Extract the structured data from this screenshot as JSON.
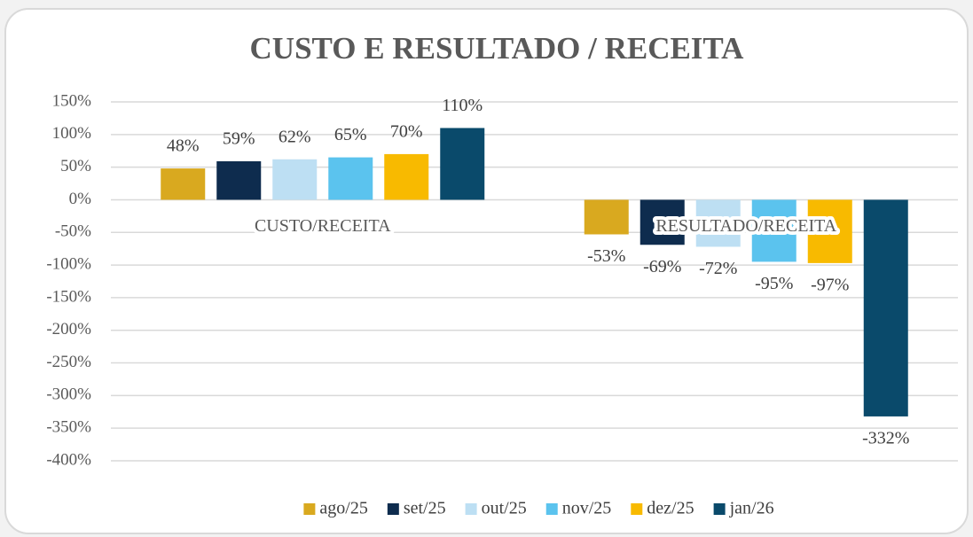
{
  "chart_data": {
    "type": "bar",
    "title": "CUSTO E RESULTADO / RECEITA",
    "categories": [
      "CUSTO/RECEITA",
      "RESULTADO/RECEITA"
    ],
    "series": [
      {
        "name": "ago/25",
        "color": "#D9A91F",
        "values": [
          48,
          -53
        ],
        "value_labels": [
          "48%",
          "-53%"
        ]
      },
      {
        "name": "set/25",
        "color": "#0E2C4E",
        "values": [
          59,
          -69
        ],
        "value_labels": [
          "59%",
          "-69%"
        ]
      },
      {
        "name": "out/25",
        "color": "#BDDFF3",
        "values": [
          62,
          -72
        ],
        "value_labels": [
          "62%",
          "-72%"
        ]
      },
      {
        "name": "nov/25",
        "color": "#5BC3EE",
        "values": [
          65,
          -95
        ],
        "value_labels": [
          "65%",
          "-95%"
        ]
      },
      {
        "name": "dez/25",
        "color": "#F8BA00",
        "values": [
          70,
          -97
        ],
        "value_labels": [
          "70%",
          "-97%"
        ]
      },
      {
        "name": "jan/26",
        "color": "#0A4A6B",
        "values": [
          110,
          -332
        ],
        "value_labels": [
          "110%",
          "-332%"
        ]
      }
    ],
    "ylim": [
      -400,
      150
    ],
    "yticks": [
      {
        "value": 150,
        "label": "150%"
      },
      {
        "value": 100,
        "label": "100%"
      },
      {
        "value": 50,
        "label": "50%"
      },
      {
        "value": 0,
        "label": "0%"
      },
      {
        "value": -50,
        "label": "-50%"
      },
      {
        "value": -100,
        "label": "-100%"
      },
      {
        "value": -150,
        "label": "-150%"
      },
      {
        "value": -200,
        "label": "-200%"
      },
      {
        "value": -250,
        "label": "-250%"
      },
      {
        "value": -300,
        "label": "-300%"
      },
      {
        "value": -350,
        "label": "-350%"
      },
      {
        "value": -400,
        "label": "-400%"
      }
    ],
    "grid": true,
    "legend": "bottom"
  }
}
